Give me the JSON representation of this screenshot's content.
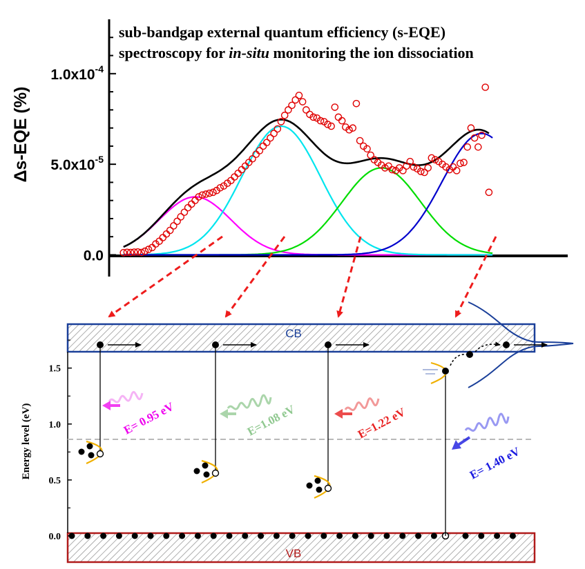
{
  "chart_data": [
    {
      "type": "scatter",
      "title_line1": "sub-bandgap external quantum efficiency (s-EQE)",
      "title_line2_pre": "spectroscopy for ",
      "title_line2_italic": "in-situ",
      "title_line2_post": " monitoring the ion dissociation",
      "ylabel": "Δs-EQE (%)",
      "xlabel": "",
      "ylim": [
        -1.2e-05,
        0.00013
      ],
      "x_range": [
        0.88,
        1.52
      ],
      "yticks": [
        {
          "value": 0,
          "label": "0.0"
        },
        {
          "value": 5e-05,
          "label": "5.0x10",
          "exp": "-5"
        },
        {
          "value": 0.0001,
          "label": "1.0x10",
          "exp": "-4"
        }
      ],
      "peaks": [
        {
          "center": 1.0,
          "sigma": 0.05,
          "amplitude": 3.2e-05,
          "color": "#ff00ff"
        },
        {
          "center": 1.12,
          "sigma": 0.055,
          "amplitude": 7.1e-05,
          "color": "#00e5ee"
        },
        {
          "center": 1.26,
          "sigma": 0.055,
          "amplitude": 4.8e-05,
          "color": "#00dd00"
        },
        {
          "center": 1.4,
          "sigma": 0.055,
          "amplitude": 6.7e-05,
          "color": "#0000cc"
        }
      ],
      "fit_color": "#000000",
      "marker_color": "#e00000",
      "measured_points": [
        [
          0.9,
          1.2e-06
        ],
        [
          0.905,
          1.4e-06
        ],
        [
          0.91,
          1.3e-06
        ],
        [
          0.915,
          1.5e-06
        ],
        [
          0.92,
          1.6e-06
        ],
        [
          0.925,
          1.3e-06
        ],
        [
          0.93,
          2e-06
        ],
        [
          0.935,
          3e-06
        ],
        [
          0.94,
          4e-06
        ],
        [
          0.945,
          6e-06
        ],
        [
          0.95,
          7.5e-06
        ],
        [
          0.955,
          9.5e-06
        ],
        [
          0.96,
          1.15e-05
        ],
        [
          0.965,
          1.35e-05
        ],
        [
          0.97,
          1.6e-05
        ],
        [
          0.975,
          1.85e-05
        ],
        [
          0.98,
          2.1e-05
        ],
        [
          0.985,
          2.35e-05
        ],
        [
          0.99,
          2.6e-05
        ],
        [
          0.995,
          2.8e-05
        ],
        [
          1.0,
          3e-05
        ],
        [
          1.005,
          3.2e-05
        ],
        [
          1.01,
          3.3e-05
        ],
        [
          1.015,
          3.35e-05
        ],
        [
          1.02,
          3.4e-05
        ],
        [
          1.025,
          3.45e-05
        ],
        [
          1.03,
          3.55e-05
        ],
        [
          1.035,
          3.7e-05
        ],
        [
          1.04,
          3.8e-05
        ],
        [
          1.045,
          3.95e-05
        ],
        [
          1.05,
          4.1e-05
        ],
        [
          1.055,
          4.3e-05
        ],
        [
          1.06,
          4.5e-05
        ],
        [
          1.065,
          4.7e-05
        ],
        [
          1.07,
          4.9e-05
        ],
        [
          1.075,
          5.1e-05
        ],
        [
          1.08,
          5.3e-05
        ],
        [
          1.085,
          5.55e-05
        ],
        [
          1.09,
          5.75e-05
        ],
        [
          1.095,
          6e-05
        ],
        [
          1.1,
          6.2e-05
        ],
        [
          1.105,
          6.45e-05
        ],
        [
          1.11,
          6.7e-05
        ],
        [
          1.115,
          6.95e-05
        ],
        [
          1.12,
          7.35e-05
        ],
        [
          1.125,
          7.7e-05
        ],
        [
          1.13,
          8e-05
        ],
        [
          1.135,
          8.25e-05
        ],
        [
          1.14,
          8.55e-05
        ],
        [
          1.145,
          8.8e-05
        ],
        [
          1.15,
          8.45e-05
        ],
        [
          1.155,
          8e-05
        ],
        [
          1.16,
          7.75e-05
        ],
        [
          1.165,
          7.6e-05
        ],
        [
          1.17,
          7.55e-05
        ],
        [
          1.175,
          7.4e-05
        ],
        [
          1.18,
          7.35e-05
        ],
        [
          1.185,
          7.2e-05
        ],
        [
          1.19,
          7.1e-05
        ],
        [
          1.195,
          8.15e-05
        ],
        [
          1.2,
          7.6e-05
        ],
        [
          1.205,
          7.4e-05
        ],
        [
          1.21,
          7.05e-05
        ],
        [
          1.215,
          6.9e-05
        ],
        [
          1.22,
          7e-05
        ],
        [
          1.225,
          8.35e-05
        ],
        [
          1.23,
          6.3e-05
        ],
        [
          1.235,
          6e-05
        ],
        [
          1.24,
          5.85e-05
        ],
        [
          1.245,
          5.5e-05
        ],
        [
          1.25,
          5.25e-05
        ],
        [
          1.255,
          5.1e-05
        ],
        [
          1.26,
          4.95e-05
        ],
        [
          1.265,
          4.8e-05
        ],
        [
          1.27,
          4.9e-05
        ],
        [
          1.275,
          4.7e-05
        ],
        [
          1.28,
          4.65e-05
        ],
        [
          1.285,
          4.8e-05
        ],
        [
          1.29,
          4.65e-05
        ],
        [
          1.295,
          4.9e-05
        ],
        [
          1.3,
          5.15e-05
        ],
        [
          1.305,
          4.85e-05
        ],
        [
          1.31,
          4.75e-05
        ],
        [
          1.315,
          4.6e-05
        ],
        [
          1.32,
          4.55e-05
        ],
        [
          1.325,
          4.8e-05
        ],
        [
          1.33,
          5.35e-05
        ],
        [
          1.335,
          5.25e-05
        ],
        [
          1.34,
          5.15e-05
        ],
        [
          1.345,
          5e-05
        ],
        [
          1.35,
          4.85e-05
        ],
        [
          1.355,
          4.7e-05
        ],
        [
          1.36,
          4.85e-05
        ],
        [
          1.365,
          4.65e-05
        ],
        [
          1.37,
          5.05e-05
        ],
        [
          1.375,
          5.1e-05
        ],
        [
          1.38,
          5.95e-05
        ],
        [
          1.385,
          7e-05
        ],
        [
          1.39,
          6.45e-05
        ],
        [
          1.395,
          5.95e-05
        ],
        [
          1.4,
          6.6e-05
        ],
        [
          1.405,
          9.25e-05
        ],
        [
          1.41,
          3.45e-05
        ]
      ]
    },
    {
      "type": "diagram",
      "ylabel": "Energy level (eV)",
      "ylim": [
        0,
        1.8
      ],
      "yticks": [
        "0.0",
        "0.5",
        "1.0",
        "1.5"
      ],
      "cb_label": "CB",
      "vb_label": "VB",
      "dashed_level": 0.83,
      "transitions": [
        {
          "label": "E= 0.95 eV",
          "color": "#ee00ee",
          "trap_level": 0.71
        },
        {
          "label": "E=1.08 eV",
          "color": "#8fc88f",
          "trap_level": 0.53
        },
        {
          "label": "E=1.22 eV",
          "color": "#e82020",
          "trap_level": 0.4
        },
        {
          "label": "E= 1.40 eV",
          "color": "#1a1ae0",
          "trap_level": 1.43
        }
      ]
    }
  ]
}
